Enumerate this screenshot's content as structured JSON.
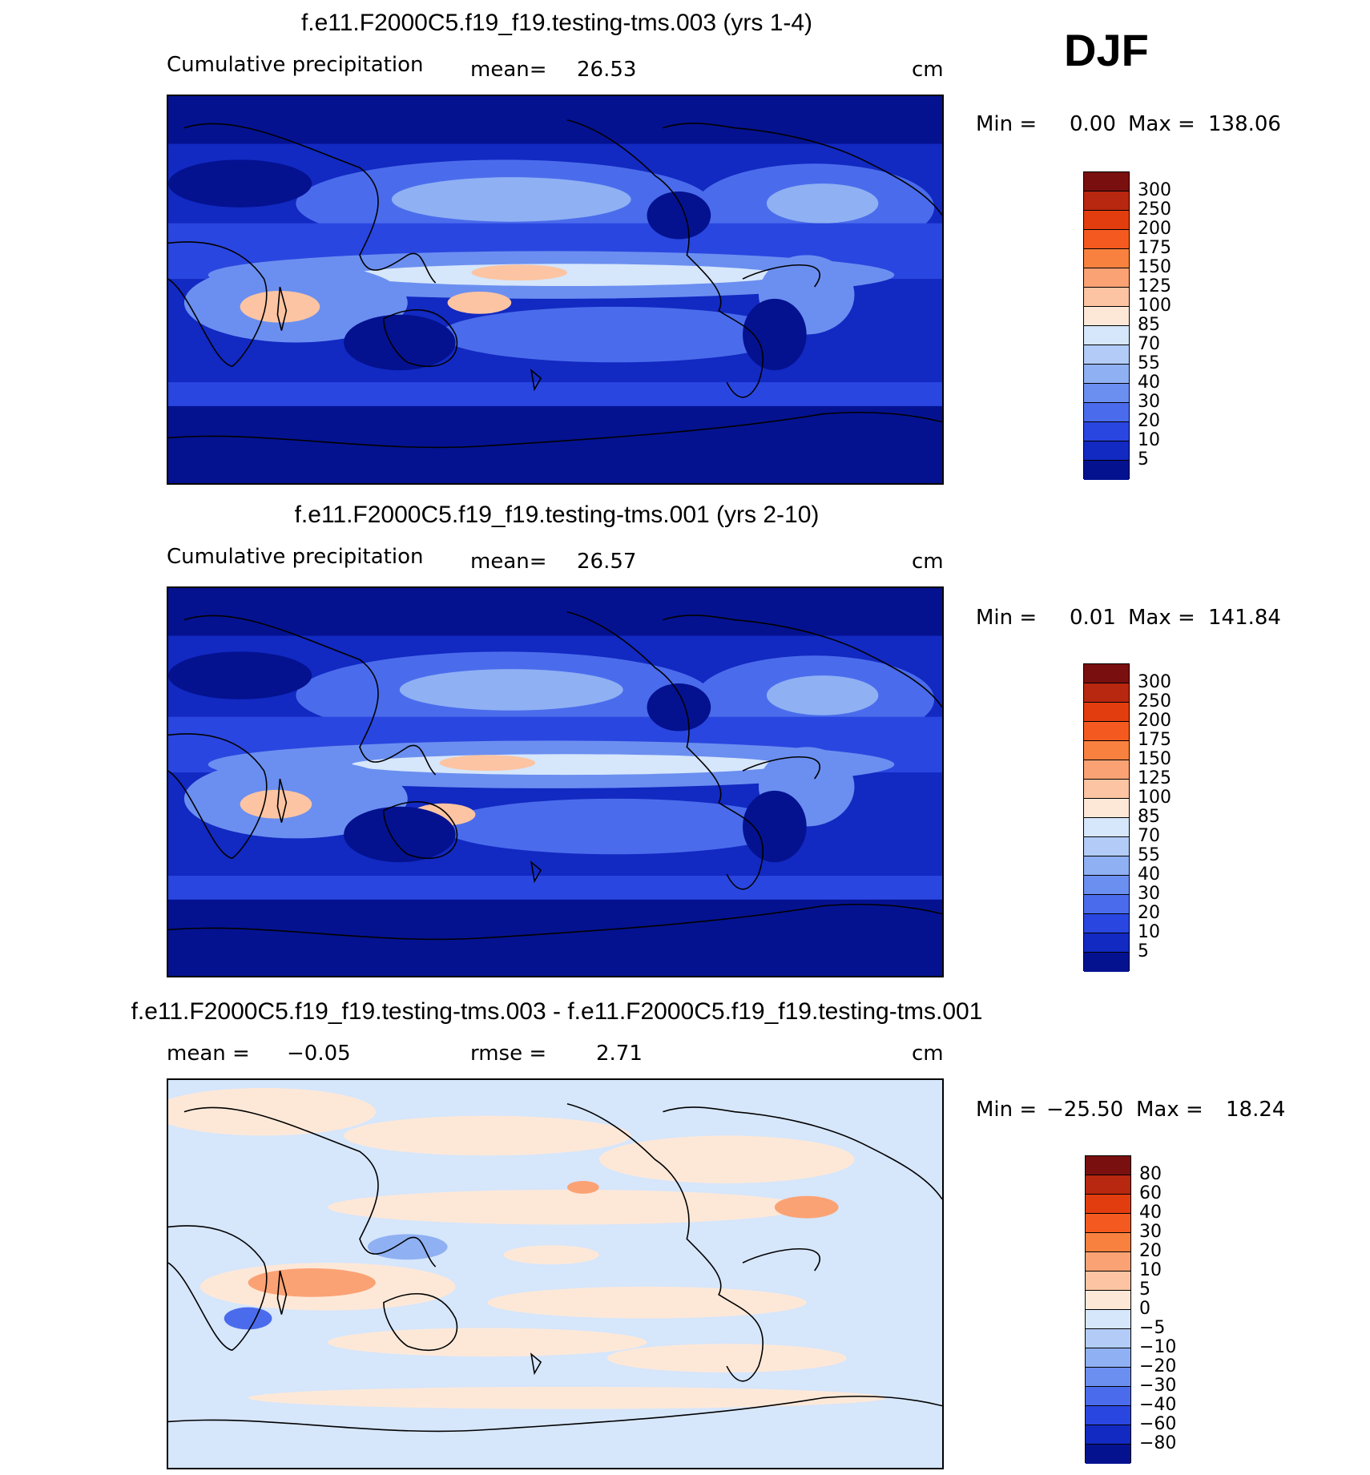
{
  "season": "DJF",
  "chart_data": [
    {
      "type": "heatmap",
      "title": "f.e11.F2000C5.f19_f19.testing-tms.003 (yrs 1-4)",
      "variable_label": "Cumulative precipitation",
      "stat_label": "mean=",
      "stat_value": "26.53",
      "units": "cm",
      "min_label": "Min =",
      "min_value": "0.00",
      "max_label": "Max =",
      "max_value": "138.06",
      "colorbar_levels": [
        "300",
        "250",
        "200",
        "175",
        "150",
        "125",
        "100",
        "85",
        "70",
        "55",
        "40",
        "30",
        "20",
        "10",
        "5"
      ],
      "colorbar_colors": [
        "#7a0f0f",
        "#b8270f",
        "#e23d0f",
        "#f45a1f",
        "#f9813f",
        "#fba274",
        "#fcc4a2",
        "#fde8d8",
        "#d6e6fb",
        "#b2ccf7",
        "#8fb0f3",
        "#6b8ff0",
        "#4a6cec",
        "#2a46e0",
        "#1229c2",
        "#041290"
      ]
    },
    {
      "type": "heatmap",
      "title": "f.e11.F2000C5.f19_f19.testing-tms.001 (yrs 2-10)",
      "variable_label": "Cumulative precipitation",
      "stat_label": "mean=",
      "stat_value": "26.57",
      "units": "cm",
      "min_label": "Min =",
      "min_value": "0.01",
      "max_label": "Max =",
      "max_value": "141.84",
      "colorbar_levels": [
        "300",
        "250",
        "200",
        "175",
        "150",
        "125",
        "100",
        "85",
        "70",
        "55",
        "40",
        "30",
        "20",
        "10",
        "5"
      ],
      "colorbar_colors": [
        "#7a0f0f",
        "#b8270f",
        "#e23d0f",
        "#f45a1f",
        "#f9813f",
        "#fba274",
        "#fcc4a2",
        "#fde8d8",
        "#d6e6fb",
        "#b2ccf7",
        "#8fb0f3",
        "#6b8ff0",
        "#4a6cec",
        "#2a46e0",
        "#1229c2",
        "#041290"
      ]
    },
    {
      "type": "heatmap",
      "title": "f.e11.F2000C5.f19_f19.testing-tms.003 - f.e11.F2000C5.f19_f19.testing-tms.001",
      "stat_label": "mean =",
      "stat_value": "−0.05",
      "rmse_label": "rmse =",
      "rmse_value": "2.71",
      "units": "cm",
      "min_label": "Min =",
      "min_value": "−25.50",
      "max_label": "Max =",
      "max_value": "18.24",
      "colorbar_levels": [
        "80",
        "60",
        "40",
        "30",
        "20",
        "10",
        "5",
        "0",
        "−5",
        "−10",
        "−20",
        "−30",
        "−40",
        "−60",
        "−80"
      ],
      "colorbar_colors": [
        "#7a0f0f",
        "#b8270f",
        "#e23d0f",
        "#f45a1f",
        "#f9813f",
        "#fba274",
        "#fcc4a2",
        "#fde8d8",
        "#d6e6fb",
        "#b2ccf7",
        "#8fb0f3",
        "#6b8ff0",
        "#4a6cec",
        "#2a46e0",
        "#1229c2",
        "#041290"
      ]
    }
  ]
}
